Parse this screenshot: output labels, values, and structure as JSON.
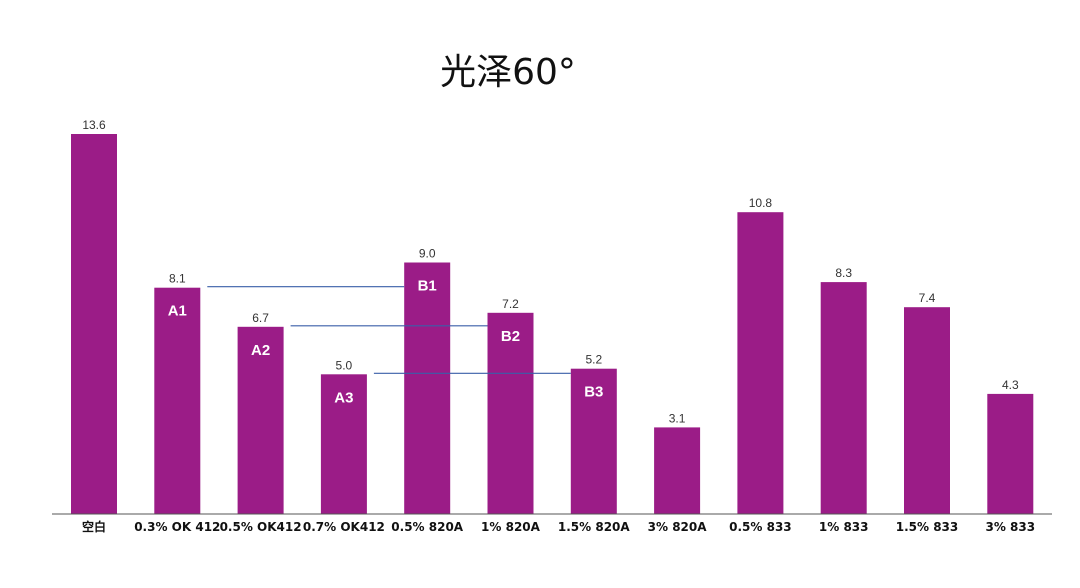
{
  "chart_data": {
    "type": "bar",
    "title": "光泽60°",
    "xlabel": "",
    "ylabel": "",
    "ylim": [
      0,
      14.5
    ],
    "grid": false,
    "legend": "none",
    "bar_color": "#9b1c87",
    "connector_color": "#3a5fa8",
    "categories": [
      "空白",
      "0.3% OK 412",
      "0.5% OK412",
      "0.7% OK412",
      "0.5% 820A",
      "1% 820A",
      "1.5% 820A",
      "3% 820A",
      "0.5% 833",
      "1% 833",
      "1.5% 833",
      "3% 833"
    ],
    "values": [
      13.6,
      8.1,
      6.7,
      5.0,
      9.0,
      7.2,
      5.2,
      3.1,
      10.8,
      8.3,
      7.4,
      4.3
    ],
    "value_labels": [
      "13.6",
      "8.1",
      "6.7",
      "5.0",
      "9.0",
      "7.2",
      "5.2",
      "3.1",
      "10.8",
      "8.3",
      "7.4",
      "4.3"
    ],
    "annotations": [
      {
        "text": "A1",
        "category_index": 1
      },
      {
        "text": "A2",
        "category_index": 2
      },
      {
        "text": "A3",
        "category_index": 3
      },
      {
        "text": "B1",
        "category_index": 4
      },
      {
        "text": "B2",
        "category_index": 5
      },
      {
        "text": "B3",
        "category_index": 6
      }
    ],
    "connectors": [
      {
        "from": "A1",
        "to": "B1"
      },
      {
        "from": "A2",
        "to": "B2"
      },
      {
        "from": "A3",
        "to": "B3"
      }
    ]
  }
}
